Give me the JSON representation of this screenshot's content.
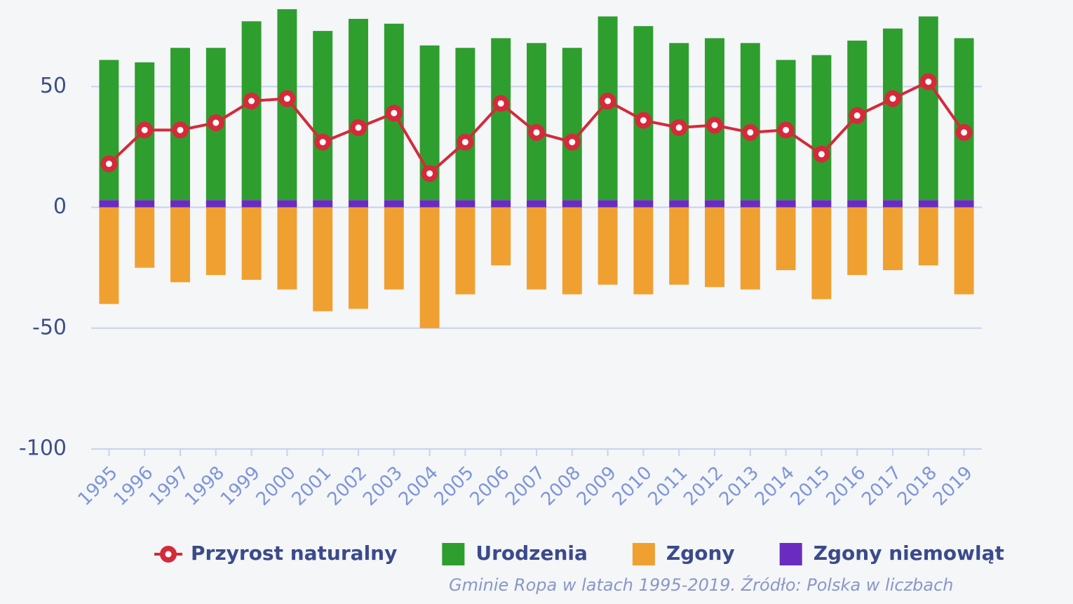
{
  "chart_data": {
    "type": "bar",
    "categories": [
      "1995",
      "1996",
      "1997",
      "1998",
      "1999",
      "2000",
      "2001",
      "2002",
      "2003",
      "2004",
      "2005",
      "2006",
      "2007",
      "2008",
      "2009",
      "2010",
      "2011",
      "2012",
      "2013",
      "2014",
      "2015",
      "2016",
      "2017",
      "2018",
      "2019"
    ],
    "series": [
      {
        "name": "Przyrost naturalny",
        "type": "line",
        "color": "#d42a3a",
        "values": [
          18,
          32,
          32,
          35,
          44,
          45,
          27,
          33,
          39,
          14,
          27,
          43,
          31,
          27,
          44,
          36,
          33,
          34,
          31,
          32,
          22,
          38,
          45,
          52,
          31
        ]
      },
      {
        "name": "Urodzenia",
        "color": "#2e9e2e",
        "values": [
          58,
          57,
          63,
          63,
          74,
          79,
          70,
          75,
          73,
          64,
          63,
          67,
          65,
          63,
          76,
          72,
          65,
          67,
          65,
          58,
          60,
          66,
          71,
          76,
          67
        ]
      },
      {
        "name": "Zgony",
        "color": "#f0a030",
        "values": [
          -40,
          -25,
          -31,
          -28,
          -30,
          -34,
          -43,
          -42,
          -34,
          -50,
          -36,
          -24,
          -34,
          -36,
          -32,
          -36,
          -32,
          -33,
          -34,
          -26,
          -38,
          -28,
          -26,
          -24,
          -36
        ]
      },
      {
        "name": "Zgony niemowląt",
        "color": "#6a2cc0",
        "values": [
          3,
          3,
          3,
          3,
          3,
          3,
          3,
          3,
          3,
          3,
          3,
          3,
          3,
          3,
          3,
          3,
          3,
          3,
          3,
          3,
          3,
          3,
          3,
          3,
          3
        ]
      }
    ],
    "ylim": [
      -100,
      80
    ],
    "yticks": [
      -100,
      -50,
      0,
      50
    ],
    "grid": true,
    "caption": "Gminie Ropa w latach 1995-2019. Źródło: Polska w liczbach"
  }
}
